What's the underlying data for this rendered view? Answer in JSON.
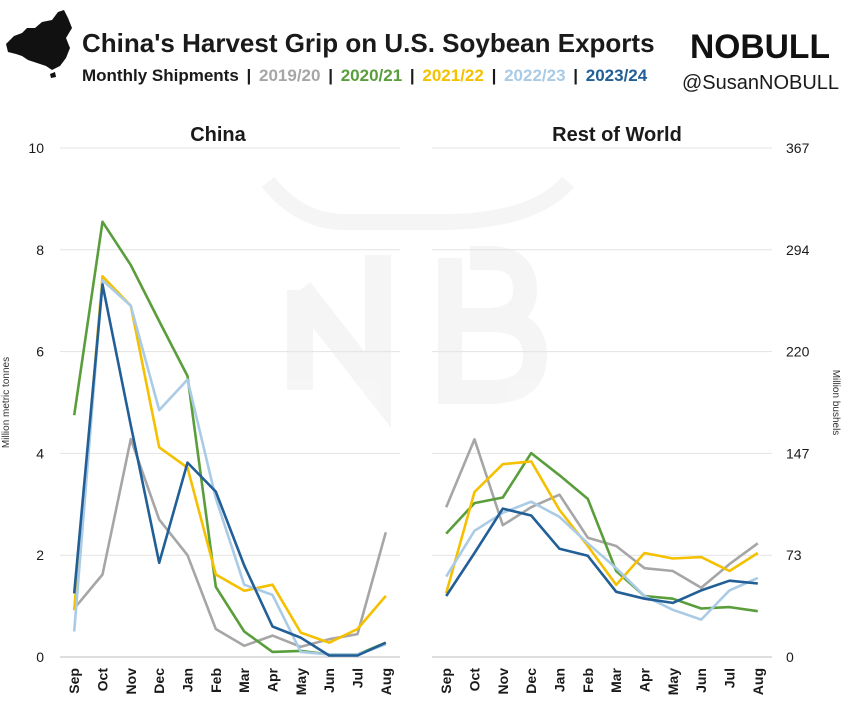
{
  "header": {
    "title": "China's Harvest Grip on U.S. Soybean Exports",
    "subtitle_prefix": "Monthly Shipments",
    "separator": "|",
    "brand": "NOBULL",
    "handle": "@SusanNOBULL"
  },
  "colors": {
    "2019/20": "#a6a6a6",
    "2020/21": "#5a9e3c",
    "2021/22": "#f5c000",
    "2022/23": "#a9cbe6",
    "2023/24": "#215f96"
  },
  "chart_data": [
    {
      "type": "line",
      "title": "China",
      "ylabel": "Million metric tonnes",
      "ylim": [
        0,
        10
      ],
      "yticks": [
        "0",
        "2",
        "4",
        "6",
        "8",
        "10"
      ],
      "categories": [
        "Sep",
        "Oct",
        "Nov",
        "Dec",
        "Jan",
        "Feb",
        "Mar",
        "Apr",
        "May",
        "Jun",
        "Jul",
        "Aug"
      ],
      "series": [
        {
          "name": "2019/20",
          "values": [
            0.95,
            1.62,
            4.28,
            2.7,
            2.0,
            0.55,
            0.22,
            0.42,
            0.2,
            0.35,
            0.45,
            2.45
          ]
        },
        {
          "name": "2020/21",
          "values": [
            4.75,
            8.55,
            7.7,
            6.6,
            5.52,
            1.38,
            0.5,
            0.1,
            0.12,
            0.05,
            0.05,
            0.28
          ]
        },
        {
          "name": "2021/22",
          "values": [
            0.92,
            7.48,
            6.9,
            4.12,
            3.72,
            1.62,
            1.3,
            1.42,
            0.48,
            0.28,
            0.55,
            1.2
          ]
        },
        {
          "name": "2022/23",
          "values": [
            0.5,
            7.4,
            6.9,
            4.85,
            5.45,
            3.12,
            1.42,
            1.22,
            0.1,
            0.05,
            0.05,
            0.25
          ]
        },
        {
          "name": "2023/24",
          "values": [
            1.25,
            7.32,
            4.55,
            1.85,
            3.82,
            3.25,
            1.8,
            0.6,
            0.38,
            0.03,
            0.03,
            0.28
          ]
        }
      ]
    },
    {
      "type": "line",
      "title": "Rest of World",
      "ylabel": "Million bushels",
      "ylim": [
        0,
        367
      ],
      "yticks": [
        "0",
        "73",
        "147",
        "220",
        "294",
        "367"
      ],
      "categories": [
        "Sep",
        "Oct",
        "Nov",
        "Dec",
        "Jan",
        "Feb",
        "Mar",
        "Apr",
        "May",
        "Jun",
        "Jul",
        "Aug"
      ],
      "series": [
        {
          "name": "2019/20",
          "values": [
            108,
            157,
            95,
            108,
            117,
            86,
            80,
            64,
            62,
            50,
            67,
            82
          ]
        },
        {
          "name": "2020/21",
          "values": [
            89,
            111,
            115,
            147,
            131,
            114,
            62,
            44,
            42,
            35,
            36,
            33
          ]
        },
        {
          "name": "2021/22",
          "values": [
            46,
            119,
            139,
            141,
            106,
            80,
            52,
            75,
            71,
            72,
            62,
            75
          ]
        },
        {
          "name": "2022/23",
          "values": [
            58,
            91,
            104,
            112,
            101,
            82,
            64,
            44,
            34,
            27,
            48,
            57
          ]
        },
        {
          "name": "2023/24",
          "values": [
            44,
            75,
            107,
            102,
            78,
            73,
            47,
            42,
            39,
            48,
            55,
            53
          ]
        }
      ]
    }
  ]
}
